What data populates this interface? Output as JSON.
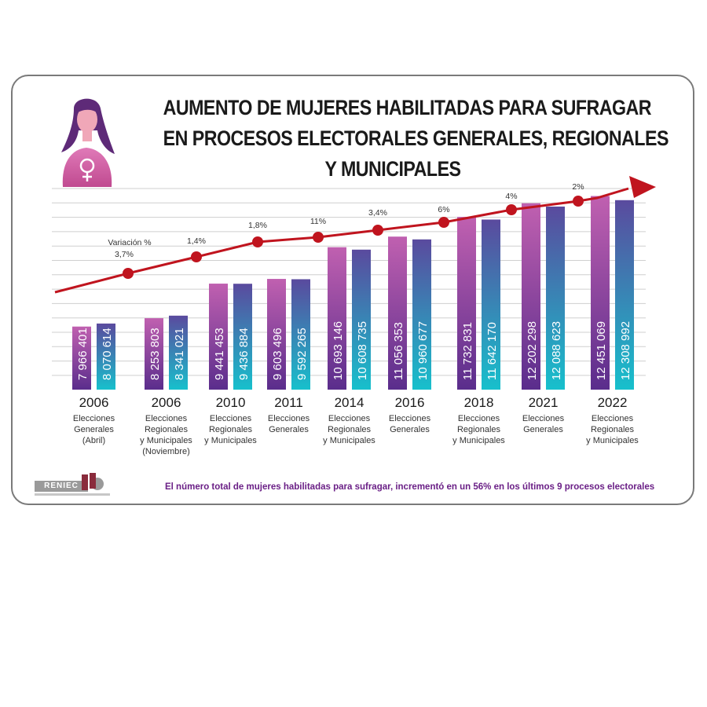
{
  "header": {
    "title_lines": [
      "AUMENTO DE MUJERES HABILITADAS PARA SUFRAGAR",
      "EN PROCESOS ELECTORALES GENERALES, REGIONALES",
      "Y MUNICIPALES"
    ]
  },
  "footer": {
    "note": "El número total de mujeres habilitadas para sufragar, incrementó en un 56% en los últimos 9 procesos electorales",
    "logo_text": "RENIEC"
  },
  "colors": {
    "bar_a_top": "#c060b0",
    "bar_a_bottom": "#5a2d8c",
    "bar_b_top": "#5a4a9e",
    "bar_b_bottom": "#17c0cc",
    "trend_line": "#c0141e",
    "grid": "#cfcfcf",
    "note_text": "#6a1f86"
  },
  "chart_data": {
    "type": "bar",
    "variation_label": "Variación %",
    "categories": [
      {
        "year": "2006",
        "desc": [
          "Elecciones",
          "Generales",
          "(Abril)"
        ],
        "variation": "3,7%"
      },
      {
        "year": "2006",
        "desc": [
          "Elecciones",
          "Regionales",
          "y Municipales",
          "(Noviembre)"
        ],
        "variation": "1,4%"
      },
      {
        "year": "2010",
        "desc": [
          "Elecciones",
          "Regionales",
          "y Municipales"
        ],
        "variation": "1,8%"
      },
      {
        "year": "2011",
        "desc": [
          "Elecciones",
          "Generales"
        ],
        "variation": "11%"
      },
      {
        "year": "2014",
        "desc": [
          "Elecciones",
          "Regionales",
          "y Municipales"
        ],
        "variation": "3,4%"
      },
      {
        "year": "2016",
        "desc": [
          "Elecciones",
          "Generales"
        ],
        "variation": "6%"
      },
      {
        "year": "2018",
        "desc": [
          "Elecciones",
          "Regionales",
          "y Municipales"
        ],
        "variation": "4%"
      },
      {
        "year": "2021",
        "desc": [
          "Elecciones",
          "Generales"
        ],
        "variation": "2%"
      },
      {
        "year": "2022",
        "desc": [
          "Elecciones",
          "Regionales",
          "y Municipales"
        ],
        "variation": ""
      }
    ],
    "series": [
      {
        "values": [
          7966401,
          8253803,
          9441453,
          9603496,
          10693146,
          11056353,
          11732831,
          12202298,
          12451069
        ],
        "labels": [
          "7 966 401",
          "8 253 803",
          "9 441 453",
          "9 603 496",
          "10 693 146",
          "11 056 353",
          "11 732 831",
          "12 202 298",
          "12 451 069"
        ]
      },
      {
        "values": [
          8070614,
          8341021,
          9436884,
          9592265,
          10608735,
          10960677,
          11642170,
          12088623,
          12308992
        ],
        "labels": [
          "8 070 614",
          "8 341 021",
          "9 436 884",
          "9 592 265",
          "10 608 735",
          "10 960 677",
          "11 642 170",
          "12 088 623",
          "12 308 992"
        ]
      }
    ]
  }
}
